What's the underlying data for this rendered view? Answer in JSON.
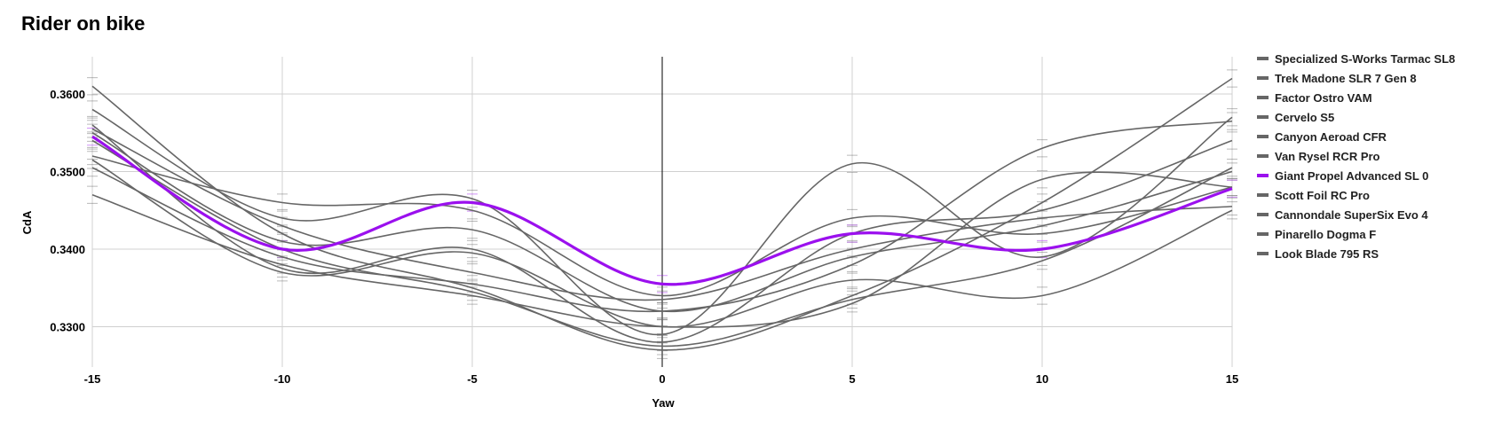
{
  "chart_data": {
    "type": "line",
    "title": "Rider on bike",
    "xlabel": "Yaw",
    "ylabel": "CdA",
    "x": [
      -15,
      -10,
      -5,
      0,
      5,
      10,
      15
    ],
    "xticks": [
      "-15",
      "-10",
      "-5",
      "0",
      "5",
      "10",
      "15"
    ],
    "yticks": [
      "0.3300",
      "0.3400",
      "0.3500",
      "0.3600"
    ],
    "xlim": [
      -15,
      15
    ],
    "ylim": [
      0.3248,
      0.3648
    ],
    "grid": true,
    "legend_position": "right",
    "series": [
      {
        "name": "Specialized S-Works Tarmac SL8",
        "color": "#666666",
        "values": [
          0.361,
          0.342,
          0.335,
          0.327,
          0.334,
          0.346,
          0.362
        ]
      },
      {
        "name": "Trek Madone SLR 7 Gen 8",
        "color": "#666666",
        "values": [
          0.358,
          0.344,
          0.3465,
          0.329,
          0.351,
          0.339,
          0.357
        ]
      },
      {
        "name": "Factor Ostro VAM",
        "color": "#666666",
        "values": [
          0.356,
          0.3375,
          0.34,
          0.328,
          0.342,
          0.345,
          0.354
        ]
      },
      {
        "name": "Cervelo S5",
        "color": "#666666",
        "values": [
          0.352,
          0.346,
          0.345,
          0.334,
          0.344,
          0.342,
          0.348
        ]
      },
      {
        "name": "Canyon Aeroad CFR",
        "color": "#666666",
        "values": [
          0.355,
          0.341,
          0.3425,
          0.332,
          0.339,
          0.343,
          0.35
        ]
      },
      {
        "name": "Van Rysel RCR Pro",
        "color": "#666666",
        "values": [
          0.347,
          0.338,
          0.334,
          0.33,
          0.333,
          0.349,
          0.348
        ]
      },
      {
        "name": "Giant Propel Advanced SL 0",
        "color": "#9b10ee",
        "values": [
          0.3545,
          0.34,
          0.346,
          0.3355,
          0.342,
          0.34,
          0.3478
        ]
      },
      {
        "name": "Scott Foil RC Pro",
        "color": "#666666",
        "values": [
          0.3515,
          0.337,
          0.3395,
          0.33,
          0.336,
          0.334,
          0.345
        ]
      },
      {
        "name": "Cannondale SuperSix Evo 4",
        "color": "#666666",
        "values": [
          0.3505,
          0.339,
          0.3355,
          0.332,
          0.338,
          0.353,
          0.3565
        ]
      },
      {
        "name": "Pinarello Dogma F",
        "color": "#666666",
        "values": [
          0.3555,
          0.343,
          0.337,
          0.3335,
          0.34,
          0.344,
          0.3455
        ]
      },
      {
        "name": "Look Blade 795 RS",
        "color": "#666666",
        "values": [
          0.354,
          0.34,
          0.3345,
          0.3275,
          0.3335,
          0.3385,
          0.3505
        ]
      }
    ]
  }
}
